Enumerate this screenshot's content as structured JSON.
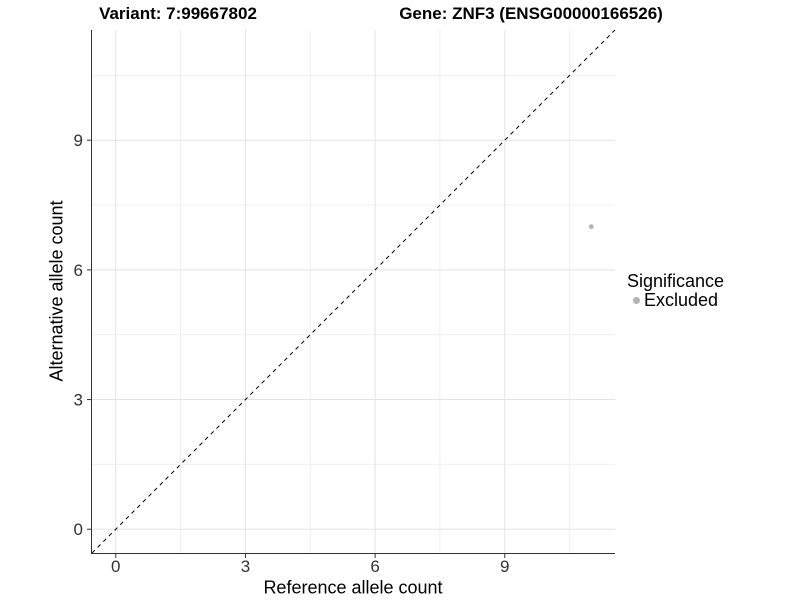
{
  "chart_data": {
    "type": "scatter",
    "title_left": "Variant: 7:99667802",
    "title_right": "Gene: ZNF3 (ENSG00000166526)",
    "xlabel": "Reference allele count",
    "ylabel": "Alternative allele count",
    "x_ticks": [
      0,
      3,
      6,
      9
    ],
    "y_ticks": [
      0,
      3,
      6,
      9
    ],
    "minor_tick_step": 1.5,
    "xlim": [
      -0.55,
      11.55
    ],
    "ylim": [
      -0.55,
      11.55
    ],
    "grid": "major+minor",
    "legend_position": "right",
    "series": [
      {
        "name": "Excluded",
        "color": "#b3b3b3",
        "marker": "circle",
        "marker_radius": 2.4,
        "points": [
          {
            "x": 11,
            "y": 7
          }
        ]
      }
    ],
    "reference_line": {
      "kind": "identity y=x",
      "style": "dashed",
      "color": "#000000",
      "from": [
        -0.55,
        -0.55
      ],
      "to": [
        11.55,
        11.55
      ]
    }
  },
  "legend": {
    "title": "Significance",
    "items": [
      {
        "label": "Excluded",
        "color": "#b3b3b3"
      }
    ]
  },
  "style": {
    "background": "#ffffff",
    "grid_major_color": "#e3e3e3",
    "grid_minor_color": "#efefef",
    "axis_color": "#333333",
    "tick_label_color": "#333333",
    "title_color": "#000000"
  }
}
